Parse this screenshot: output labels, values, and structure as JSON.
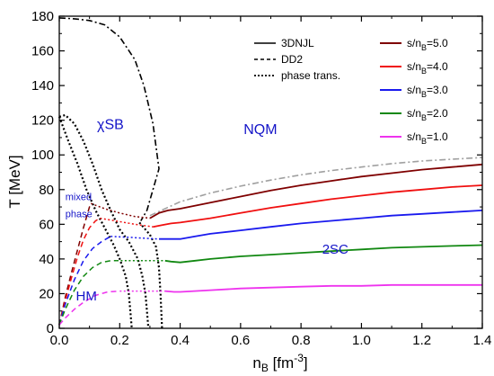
{
  "chart_data": {
    "type": "line",
    "xlabel": "n",
    "xlabel_sub": "B",
    "xlabel_unit_pre": " [fm",
    "xlabel_unit_sup": "-3",
    "xlabel_unit_post": "]",
    "ylabel": "T [MeV]",
    "xlim": [
      0.0,
      1.4
    ],
    "ylim": [
      0,
      180
    ],
    "xticks": [
      "0.0",
      "0.2",
      "0.4",
      "0.6",
      "0.8",
      "1.0",
      "1.2",
      "1.4"
    ],
    "yticks": [
      "0",
      "20",
      "40",
      "60",
      "80",
      "100",
      "120",
      "140",
      "160",
      "180"
    ],
    "grid": false,
    "style_legend": [
      {
        "label": "3DNJL",
        "dash": "solid"
      },
      {
        "label": "DD2",
        "dash": "dashed"
      },
      {
        "label": "phase trans.",
        "dash": "dotted"
      }
    ],
    "series": [
      {
        "name": "s/n_B=5.0",
        "sym": "s/n",
        "sub": "B",
        "val": "=5.0",
        "color": "#7f0000",
        "hm": [
          [
            0.0,
            2
          ],
          [
            0.02,
            18
          ],
          [
            0.04,
            32
          ],
          [
            0.06,
            45
          ],
          [
            0.08,
            58
          ],
          [
            0.1,
            70
          ],
          [
            0.105,
            72
          ]
        ],
        "mix": [
          [
            0.105,
            72
          ],
          [
            0.15,
            69
          ],
          [
            0.2,
            66.5
          ],
          [
            0.25,
            64.5
          ],
          [
            0.3,
            63.5
          ]
        ],
        "qm": [
          [
            0.3,
            63.5
          ],
          [
            0.33,
            66.5
          ],
          [
            0.36,
            68
          ],
          [
            0.4,
            69
          ],
          [
            0.5,
            72.5
          ],
          [
            0.6,
            76
          ],
          [
            0.7,
            79.5
          ],
          [
            0.8,
            82.5
          ],
          [
            0.9,
            85
          ],
          [
            1.0,
            87.5
          ],
          [
            1.1,
            89.5
          ],
          [
            1.2,
            91.5
          ],
          [
            1.3,
            93
          ],
          [
            1.4,
            94.5
          ]
        ]
      },
      {
        "name": "s/n_B=4.0",
        "sym": "s/n",
        "sub": "B",
        "val": "=4.0",
        "color": "#f01010",
        "hm": [
          [
            0.0,
            2
          ],
          [
            0.02,
            16
          ],
          [
            0.04,
            29
          ],
          [
            0.06,
            41
          ],
          [
            0.08,
            51
          ],
          [
            0.1,
            58
          ],
          [
            0.12,
            62
          ],
          [
            0.135,
            63.5
          ]
        ],
        "mix": [
          [
            0.135,
            63.5
          ],
          [
            0.2,
            61.5
          ],
          [
            0.25,
            60
          ],
          [
            0.31,
            58.5
          ]
        ],
        "qm": [
          [
            0.31,
            58.5
          ],
          [
            0.34,
            59.5
          ],
          [
            0.37,
            60.5
          ],
          [
            0.4,
            61
          ],
          [
            0.5,
            63.5
          ],
          [
            0.6,
            66.5
          ],
          [
            0.7,
            69.5
          ],
          [
            0.8,
            72
          ],
          [
            0.9,
            74.5
          ],
          [
            1.0,
            76.5
          ],
          [
            1.1,
            78.5
          ],
          [
            1.2,
            80
          ],
          [
            1.3,
            81.5
          ],
          [
            1.4,
            82.5
          ]
        ]
      },
      {
        "name": "s/n_B=3.0",
        "sym": "s/n",
        "sub": "B",
        "val": "=3.0",
        "color": "#1a1aee",
        "hm": [
          [
            0.0,
            2
          ],
          [
            0.02,
            14
          ],
          [
            0.05,
            28
          ],
          [
            0.08,
            39
          ],
          [
            0.11,
            46
          ],
          [
            0.14,
            50
          ],
          [
            0.17,
            53
          ]
        ],
        "mix": [
          [
            0.17,
            53
          ],
          [
            0.23,
            52.5
          ],
          [
            0.28,
            52
          ],
          [
            0.33,
            51.5
          ]
        ],
        "qm": [
          [
            0.33,
            51.5
          ],
          [
            0.36,
            51.5
          ],
          [
            0.4,
            51.5
          ],
          [
            0.45,
            53
          ],
          [
            0.5,
            54.5
          ],
          [
            0.6,
            56.5
          ],
          [
            0.7,
            58.5
          ],
          [
            0.8,
            60.5
          ],
          [
            0.9,
            62
          ],
          [
            1.0,
            63.5
          ],
          [
            1.1,
            65
          ],
          [
            1.2,
            66
          ],
          [
            1.3,
            67
          ],
          [
            1.4,
            68
          ]
        ]
      },
      {
        "name": "s/n_B=2.0",
        "sym": "s/n",
        "sub": "B",
        "val": "=2.0",
        "color": "#118811",
        "hm": [
          [
            0.0,
            2
          ],
          [
            0.02,
            11
          ],
          [
            0.05,
            22
          ],
          [
            0.08,
            30
          ],
          [
            0.11,
            35
          ],
          [
            0.14,
            38
          ],
          [
            0.17,
            39
          ],
          [
            0.19,
            39
          ]
        ],
        "mix": [
          [
            0.19,
            39
          ],
          [
            0.24,
            39
          ],
          [
            0.3,
            39
          ],
          [
            0.35,
            39
          ]
        ],
        "qm": [
          [
            0.35,
            39
          ],
          [
            0.37,
            38.5
          ],
          [
            0.4,
            38
          ],
          [
            0.45,
            39
          ],
          [
            0.5,
            40
          ],
          [
            0.6,
            41.5
          ],
          [
            0.7,
            42.5
          ],
          [
            0.8,
            43.5
          ],
          [
            0.9,
            44.5
          ],
          [
            1.0,
            45.5
          ],
          [
            1.1,
            46.5
          ],
          [
            1.2,
            47
          ],
          [
            1.3,
            47.5
          ],
          [
            1.4,
            48
          ]
        ]
      },
      {
        "name": "s/n_B=1.0",
        "sym": "s/n",
        "sub": "B",
        "val": "=1.0",
        "color": "#ee33ee",
        "hm": [
          [
            0.0,
            2
          ],
          [
            0.02,
            6
          ],
          [
            0.05,
            11
          ],
          [
            0.08,
            15
          ],
          [
            0.12,
            19
          ],
          [
            0.16,
            21
          ],
          [
            0.2,
            21.5
          ]
        ],
        "mix": [
          [
            0.2,
            21.5
          ],
          [
            0.26,
            21.5
          ],
          [
            0.31,
            21.5
          ],
          [
            0.35,
            21.5
          ]
        ],
        "qm": [
          [
            0.35,
            21.5
          ],
          [
            0.38,
            21
          ],
          [
            0.4,
            21
          ],
          [
            0.5,
            22
          ],
          [
            0.6,
            23
          ],
          [
            0.7,
            23.5
          ],
          [
            0.8,
            24
          ],
          [
            0.9,
            24.5
          ],
          [
            1.0,
            24.5
          ],
          [
            1.1,
            25
          ],
          [
            1.2,
            25
          ],
          [
            1.3,
            25
          ],
          [
            1.4,
            25
          ]
        ]
      }
    ],
    "boundaries": [
      {
        "name": "xsb-outer-boundary",
        "style": "dashdot",
        "color": "#000000",
        "points": [
          [
            0.0,
            179
          ],
          [
            0.05,
            178.5
          ],
          [
            0.1,
            177.5
          ],
          [
            0.15,
            175
          ],
          [
            0.2,
            168
          ],
          [
            0.25,
            155
          ],
          [
            0.28,
            140
          ],
          [
            0.31,
            118
          ],
          [
            0.33,
            92
          ],
          [
            0.31,
            80
          ],
          [
            0.29,
            68
          ],
          [
            0.27,
            62
          ]
        ]
      },
      {
        "name": "xsb-inner-boundary",
        "style": "dotted",
        "color": "#000000",
        "points": [
          [
            0.0,
            122
          ],
          [
            0.02,
            123
          ],
          [
            0.05,
            118
          ],
          [
            0.08,
            108
          ],
          [
            0.11,
            95
          ],
          [
            0.14,
            80
          ],
          [
            0.17,
            68
          ],
          [
            0.2,
            57
          ],
          [
            0.23,
            50
          ],
          [
            0.26,
            40
          ],
          [
            0.275,
            30
          ],
          [
            0.285,
            20
          ],
          [
            0.29,
            10
          ],
          [
            0.295,
            0
          ]
        ]
      },
      {
        "name": "hm-inner-boundary",
        "style": "dotted",
        "color": "#000000",
        "points": [
          [
            0.0,
            122
          ],
          [
            0.03,
            108
          ],
          [
            0.06,
            95
          ],
          [
            0.09,
            80
          ],
          [
            0.12,
            68
          ],
          [
            0.15,
            58
          ],
          [
            0.18,
            48
          ],
          [
            0.2,
            40
          ],
          [
            0.22,
            30
          ],
          [
            0.23,
            20
          ],
          [
            0.235,
            10
          ],
          [
            0.24,
            0
          ]
        ]
      },
      {
        "name": "qm-inner-boundary",
        "style": "dotted",
        "color": "#000000",
        "points": [
          [
            0.265,
            61
          ],
          [
            0.3,
            54
          ],
          [
            0.32,
            47
          ],
          [
            0.33,
            35
          ],
          [
            0.335,
            20
          ],
          [
            0.34,
            0
          ]
        ]
      },
      {
        "name": "critical-extension",
        "style": "dashdot",
        "color": "#a0a0a0",
        "points": [
          [
            0.3,
            65
          ],
          [
            0.4,
            73
          ],
          [
            0.5,
            78
          ],
          [
            0.6,
            82
          ],
          [
            0.7,
            85.5
          ],
          [
            0.8,
            88.5
          ],
          [
            0.9,
            91
          ],
          [
            1.0,
            93
          ],
          [
            1.1,
            95
          ],
          [
            1.2,
            96.5
          ],
          [
            1.3,
            97.5
          ],
          [
            1.4,
            98.5
          ]
        ]
      }
    ],
    "regions": [
      {
        "id": "xsb",
        "text": "χSB",
        "x": 0.125,
        "y": 115,
        "size": 16
      },
      {
        "id": "nqm",
        "text": "NQM",
        "x": 0.61,
        "y": 112,
        "size": 16
      },
      {
        "id": "2sc",
        "text": "2SC",
        "x": 0.87,
        "y": 43,
        "size": 15
      },
      {
        "id": "hm",
        "text": "HM",
        "x": 0.055,
        "y": 16,
        "size": 15
      },
      {
        "id": "mixed1",
        "text": "mixed",
        "x": 0.02,
        "y": 74,
        "size": 11
      },
      {
        "id": "mixed2",
        "text": "phase",
        "x": 0.02,
        "y": 64,
        "size": 11
      }
    ]
  }
}
